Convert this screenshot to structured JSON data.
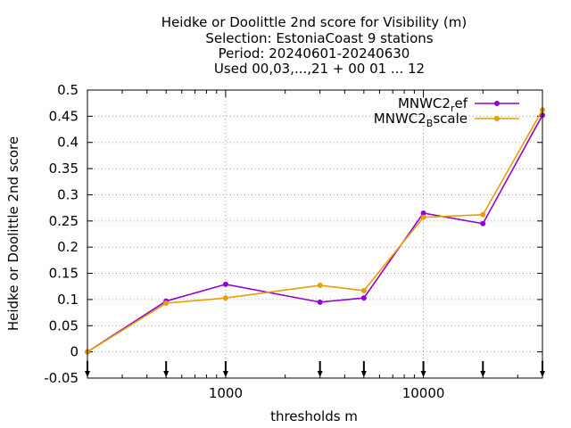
{
  "chart_data": {
    "type": "line",
    "title_lines": [
      "Heidke or Doolittle 2nd score  for Visibility (m)",
      "Selection: EstoniaCoast      9 stations",
      "Period: 20240601-20240630",
      "Used 00,03,...,21 + 00 01 ... 12"
    ],
    "xlabel": "thresholds m",
    "ylabel": "Heidke or Doolittle 2nd score",
    "x_scale": "log",
    "xlim": [
      200,
      40000
    ],
    "ylim": [
      -0.05,
      0.5
    ],
    "x_tick_labels": [
      {
        "value": 1000,
        "label": "1000"
      },
      {
        "value": 10000,
        "label": "10000"
      }
    ],
    "y_tick_labels": [
      "-0.05",
      "0",
      "0.05",
      "0.1",
      "0.15",
      "0.2",
      "0.25",
      "0.3",
      "0.35",
      "0.4",
      "0.45",
      "0.5"
    ],
    "y_ticks": [
      -0.05,
      0,
      0.05,
      0.1,
      0.15,
      0.2,
      0.25,
      0.3,
      0.35,
      0.4,
      0.45,
      0.5
    ],
    "grid": true,
    "legend_position": "top-right",
    "threshold_markers": [
      200,
      500,
      1000,
      3000,
      5000,
      10000,
      20000,
      40000
    ],
    "x": [
      200,
      500,
      1000,
      3000,
      5000,
      10000,
      20000,
      40000
    ],
    "series": [
      {
        "name_main": "MNWC2",
        "name_sub": "r",
        "name_tail": "ef",
        "color": "#9400d3",
        "values": [
          0.0,
          0.097,
          0.129,
          0.095,
          0.103,
          0.265,
          0.245,
          0.452
        ]
      },
      {
        "name_main": "MNWC2",
        "name_sub": "B",
        "name_tail": "scale",
        "color": "#e69f00",
        "values": [
          0.0,
          0.093,
          0.103,
          0.127,
          0.117,
          0.257,
          0.262,
          0.462
        ]
      }
    ]
  }
}
